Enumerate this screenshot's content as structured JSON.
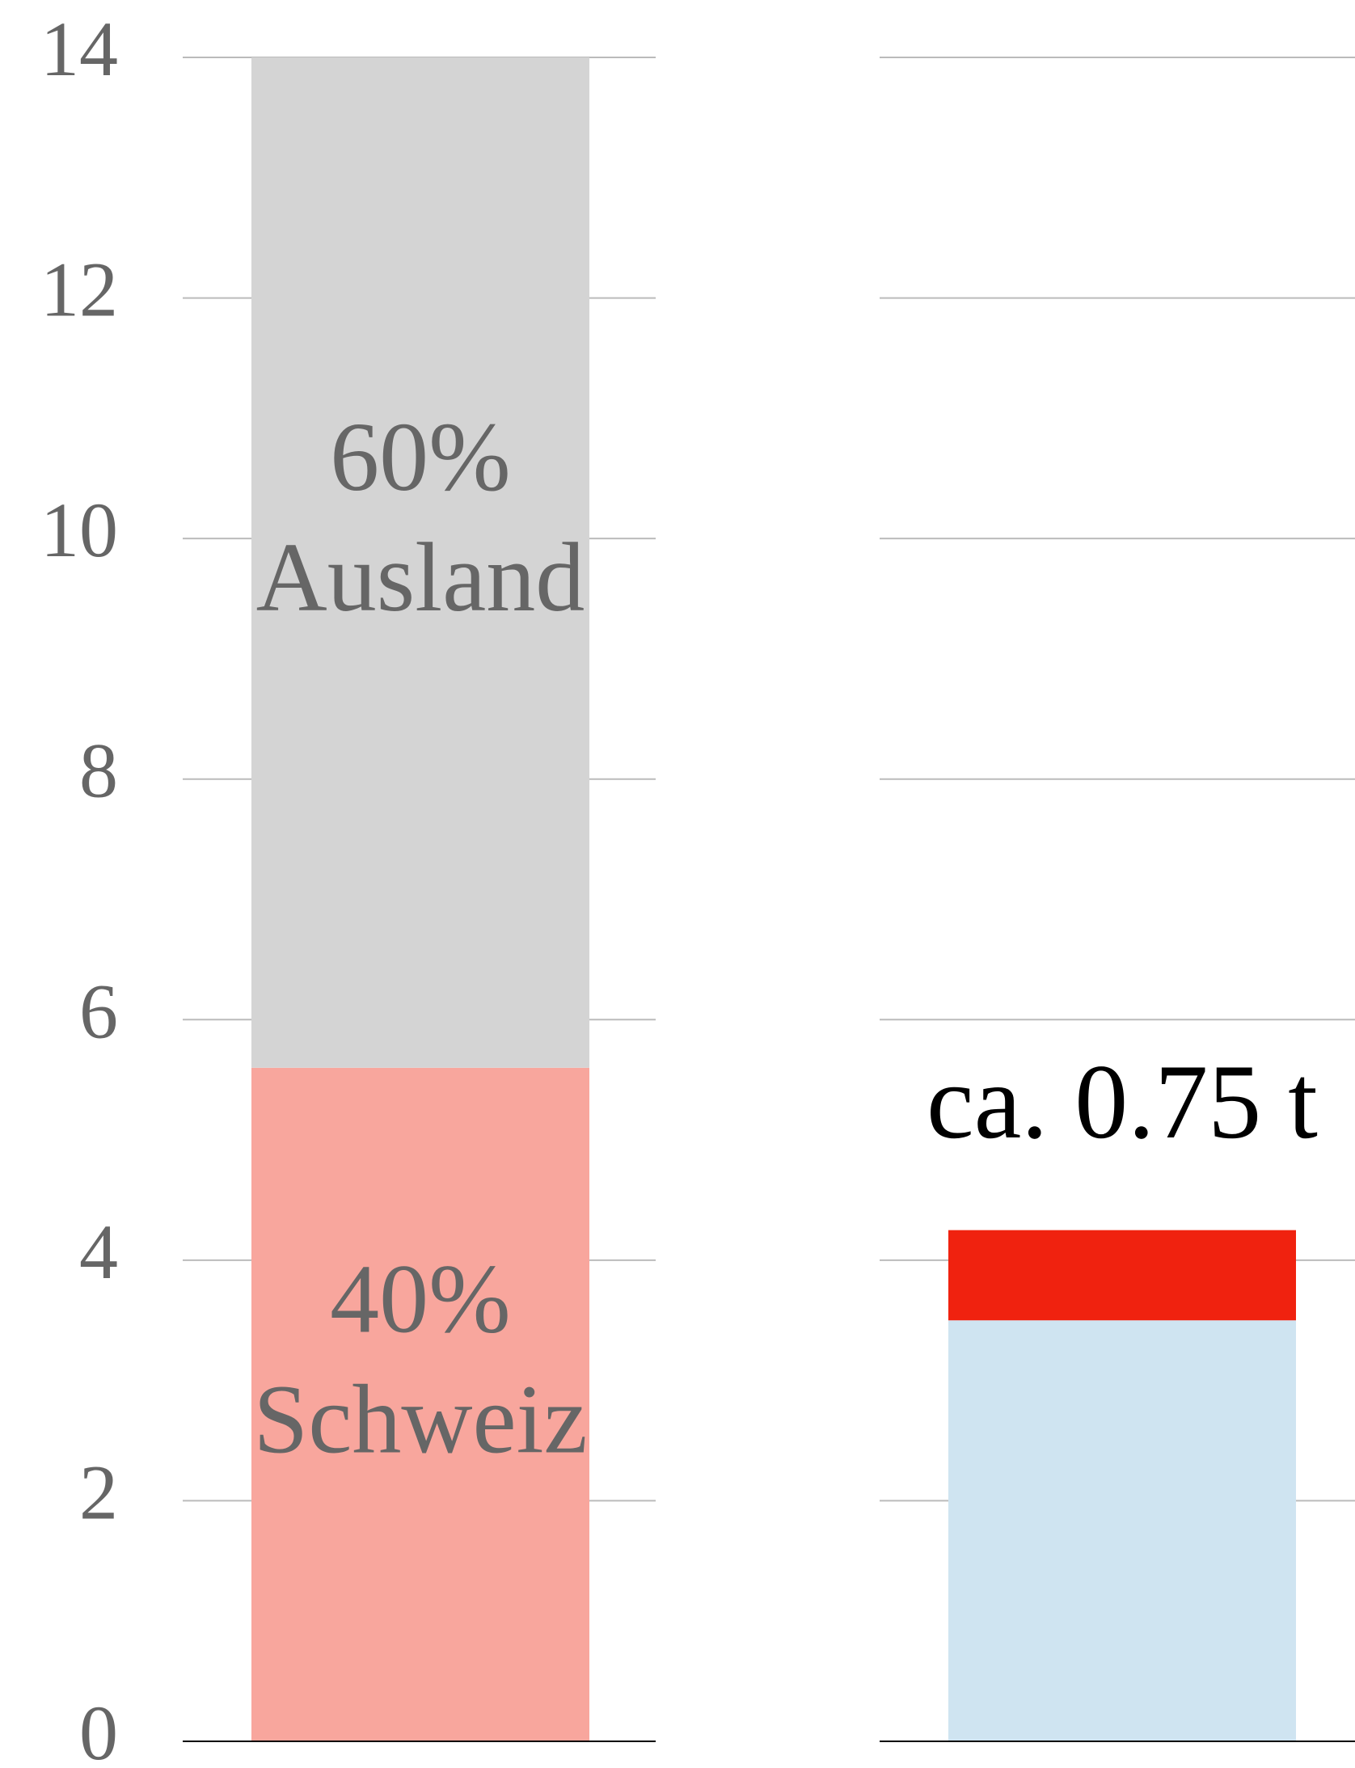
{
  "chart_data": {
    "type": "stacked_bar",
    "categories": [
      null,
      null
    ],
    "series": [
      {
        "name": "Schweiz",
        "share_label": "40%",
        "colors": [
          "#f8a69d",
          "#cfe4f1"
        ],
        "values": [
          5.6,
          3.5
        ]
      },
      {
        "name": "Ausland",
        "share_label": "60%",
        "colors": [
          "#d4d4d4",
          "#f0220f"
        ],
        "values": [
          8.4,
          0.75
        ]
      }
    ],
    "annotation": "ca. 0.75 t",
    "ylim": [
      0,
      14
    ],
    "yticks": [
      0,
      2,
      4,
      6,
      8,
      10,
      12,
      14
    ],
    "grid": true
  }
}
